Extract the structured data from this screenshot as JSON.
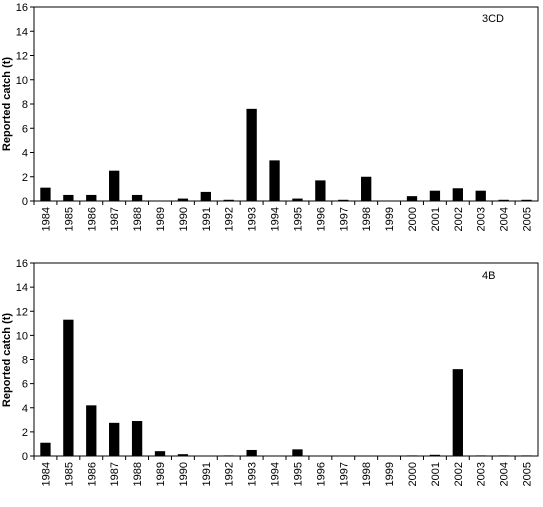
{
  "chart_data": [
    {
      "type": "bar",
      "annotation": "3CD",
      "xlabel": "",
      "ylabel": "Reported catch (t)",
      "ylim": [
        0,
        16
      ],
      "yticks": [
        0,
        2,
        4,
        6,
        8,
        10,
        12,
        14,
        16
      ],
      "categories": [
        "1984",
        "1985",
        "1986",
        "1987",
        "1988",
        "1989",
        "1990",
        "1991",
        "1992",
        "1993",
        "1994",
        "1995",
        "1996",
        "1997",
        "1998",
        "1999",
        "2000",
        "2001",
        "2002",
        "2003",
        "2004",
        "2005"
      ],
      "values": [
        1.1,
        0.5,
        0.5,
        2.5,
        0.5,
        0,
        0.2,
        0.75,
        0.1,
        7.6,
        3.35,
        0.2,
        1.7,
        0.1,
        2.0,
        0,
        0.4,
        0.85,
        1.05,
        0.85,
        0.1,
        0.1
      ],
      "grid": false,
      "bar_color": "#000000"
    },
    {
      "type": "bar",
      "annotation": "4B",
      "xlabel": "",
      "ylabel": "Reported catch (t)",
      "ylim": [
        0,
        16
      ],
      "yticks": [
        0,
        2,
        4,
        6,
        8,
        10,
        12,
        14,
        16
      ],
      "categories": [
        "1984",
        "1985",
        "1986",
        "1987",
        "1988",
        "1989",
        "1990",
        "1991",
        "1992",
        "1993",
        "1994",
        "1995",
        "1996",
        "1997",
        "1998",
        "1999",
        "2000",
        "2001",
        "2002",
        "2003",
        "2004",
        "2005"
      ],
      "values": [
        1.1,
        11.3,
        4.2,
        2.75,
        2.9,
        0.4,
        0.15,
        0,
        0.05,
        0.5,
        0,
        0.55,
        0,
        0,
        0,
        0,
        0.05,
        0.1,
        7.2,
        0.05,
        0.05,
        0.05
      ],
      "grid": false,
      "bar_color": "#000000"
    }
  ]
}
